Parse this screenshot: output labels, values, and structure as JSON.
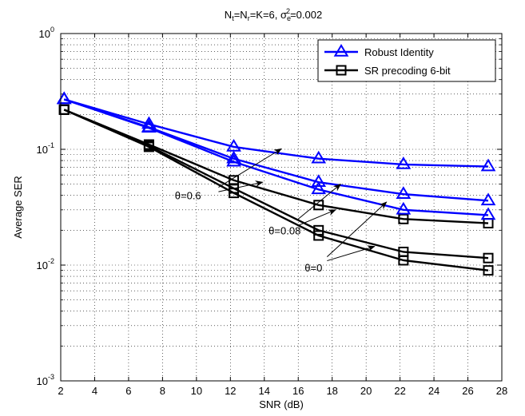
{
  "chart_data": {
    "type": "line",
    "title": "N_t=N_r=K=6, σ_e^2=0.002",
    "title_parts": {
      "n": "N",
      "t": "t",
      "eq1": "=N",
      "r": "r",
      "eq2": "=K=6, σ",
      "e": "e",
      "sq": "2",
      "eq3": "=0.002"
    },
    "xlabel": "SNR (dB)",
    "ylabel": "Average SER",
    "xlim": [
      2,
      28
    ],
    "ylim": [
      0.001,
      1
    ],
    "yscale": "log",
    "grid": true,
    "legend_position": "top-right",
    "x_ticks": [
      "2",
      "4",
      "6",
      "8",
      "10",
      "12",
      "14",
      "16",
      "18",
      "20",
      "22",
      "24",
      "26",
      "28"
    ],
    "y_ticks": [
      {
        "base": "10",
        "exp": "0",
        "value": 1
      },
      {
        "base": "10",
        "exp": "-1",
        "value": 0.1
      },
      {
        "base": "10",
        "exp": "-2",
        "value": 0.01
      },
      {
        "base": "10",
        "exp": "-3",
        "value": 0.001
      }
    ],
    "x": [
      2.2,
      7.2,
      12.2,
      17.2,
      22.2,
      27.2
    ],
    "series": [
      {
        "name": "Robust Identity",
        "group": "Robust Identity",
        "color": "#0000ff",
        "marker": "triangle",
        "theta": "0.6",
        "values": [
          0.27,
          0.165,
          0.105,
          0.083,
          0.074,
          0.071
        ]
      },
      {
        "name": "",
        "group": "Robust Identity",
        "color": "#0000ff",
        "marker": "triangle",
        "theta": "0.08",
        "values": [
          0.27,
          0.155,
          0.083,
          0.052,
          0.041,
          0.036
        ]
      },
      {
        "name": "",
        "group": "Robust Identity",
        "color": "#0000ff",
        "marker": "triangle",
        "theta": "0",
        "values": [
          0.27,
          0.153,
          0.078,
          0.045,
          0.03,
          0.027
        ]
      },
      {
        "name": "SR precoding 6-bit",
        "group": "SR precoding 6-bit",
        "color": "#000000",
        "marker": "square",
        "theta": "0.6",
        "values": [
          0.22,
          0.11,
          0.054,
          0.033,
          0.025,
          0.023
        ]
      },
      {
        "name": "",
        "group": "SR precoding 6-bit",
        "color": "#000000",
        "marker": "square",
        "theta": "0.08",
        "values": [
          0.22,
          0.107,
          0.046,
          0.02,
          0.013,
          0.0115
        ]
      },
      {
        "name": "",
        "group": "SR precoding 6-bit",
        "color": "#000000",
        "marker": "square",
        "theta": "0",
        "values": [
          0.22,
          0.105,
          0.042,
          0.018,
          0.011,
          0.009
        ]
      }
    ],
    "legend": [
      {
        "label": "Robust Identity",
        "color": "#0000ff",
        "marker": "triangle"
      },
      {
        "label": "SR precoding 6-bit",
        "color": "#000000",
        "marker": "square"
      }
    ],
    "annotations": [
      {
        "text": "θ=0.6",
        "anchor": {
          "x": 9.5,
          "y": 0.037
        },
        "arrows": [
          {
            "x1": 11.3,
            "y1": 0.047,
            "x2": 15.0,
            "y2": 0.101
          },
          {
            "x1": 11.3,
            "y1": 0.043,
            "x2": 13.9,
            "y2": 0.052
          }
        ]
      },
      {
        "text": "θ=0.08",
        "anchor": {
          "x": 15.2,
          "y": 0.0185
        },
        "arrows": [
          {
            "x1": 16.0,
            "y1": 0.025,
            "x2": 18.5,
            "y2": 0.05
          },
          {
            "x1": 16.0,
            "y1": 0.022,
            "x2": 18.2,
            "y2": 0.03
          }
        ]
      },
      {
        "text": "θ=0",
        "anchor": {
          "x": 16.9,
          "y": 0.0088
        },
        "arrows": [
          {
            "x1": 17.7,
            "y1": 0.0118,
            "x2": 21.2,
            "y2": 0.035
          },
          {
            "x1": 17.7,
            "y1": 0.0109,
            "x2": 20.5,
            "y2": 0.0145
          }
        ]
      }
    ]
  }
}
